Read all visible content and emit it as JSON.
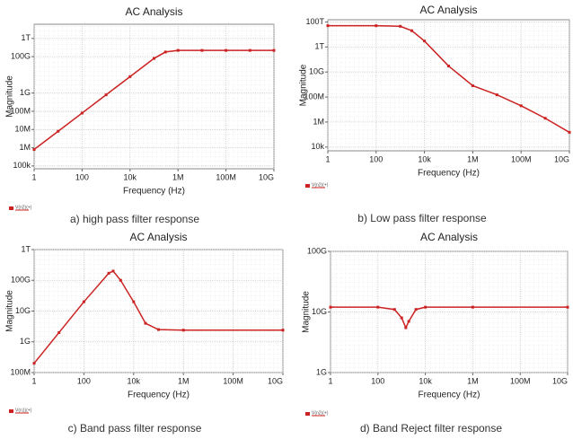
{
  "chart_data": [
    {
      "type": "line",
      "title": "AC Analysis",
      "x_label": "Frequency (Hz)",
      "y_label": "Magnitude",
      "caption": "a)    high pass filter response",
      "log_x": true,
      "log_y": true,
      "grid": true,
      "xlim": [
        1,
        10000000000
      ],
      "ylim": [
        70000,
        6000000000000
      ],
      "xticks": [
        1,
        100,
        {
          "value": 10000,
          "label": "10k"
        },
        {
          "value": 1000000,
          "label": "1M"
        },
        {
          "value": 100000000,
          "label": "100M"
        },
        {
          "value": 10000000000,
          "label": "10G"
        }
      ],
      "yticks": [
        {
          "value": 100000,
          "label": "100k"
        },
        {
          "value": 1000000,
          "label": "1M"
        },
        {
          "value": 10000000,
          "label": "10M"
        },
        {
          "value": 100000000,
          "label": "100M"
        },
        {
          "value": 1000000000,
          "label": "1G"
        },
        {
          "value": 100000000000,
          "label": "100G"
        },
        {
          "value": 1000000000000,
          "label": "1T"
        }
      ],
      "x": [
        1,
        10,
        100,
        1000,
        10000,
        100000,
        300000,
        1000000,
        10000000,
        100000000,
        1000000000,
        10000000000
      ],
      "series": [
        {
          "name": "V(n2)(+)",
          "color": "#cc2222",
          "values": [
            800000,
            8000000,
            80000000,
            800000000,
            8000000000,
            80000000000,
            180000000000,
            220000000000,
            220000000000,
            220000000000,
            220000000000,
            220000000000
          ]
        }
      ]
    },
    {
      "type": "line",
      "title": "AC Analysis",
      "x_label": "Frequency (Hz)",
      "y_label": "Magnitude",
      "caption": "b) Low pass filter response",
      "log_x": true,
      "log_y": true,
      "grid": true,
      "xlim": [
        1,
        10000000000
      ],
      "ylim": [
        5000,
        150000000000000
      ],
      "xticks": [
        1,
        100,
        {
          "value": 10000,
          "label": "10k"
        },
        {
          "value": 1000000,
          "label": "1M"
        },
        {
          "value": 100000000,
          "label": "100M"
        },
        {
          "value": 10000000000,
          "label": "10G"
        }
      ],
      "yticks": [
        {
          "value": 10000,
          "label": "10k"
        },
        {
          "value": 1000000,
          "label": "1M"
        },
        {
          "value": 100000000,
          "label": "100M"
        },
        {
          "value": 10000000000,
          "label": "10G"
        },
        {
          "value": 1000000000000,
          "label": "1T"
        },
        {
          "value": 100000000000000,
          "label": "100T"
        }
      ],
      "x": [
        1,
        100,
        1000,
        3000,
        10000,
        100000,
        1000000,
        10000000,
        100000000,
        1000000000,
        10000000000
      ],
      "series": [
        {
          "name": "V(n2)(+)",
          "color": "#cc2222",
          "values": [
            50000000000000,
            50000000000000,
            45000000000000,
            20000000000000,
            3000000000000,
            30000000000,
            800000000,
            150000000,
            20000000,
            2000000,
            150000
          ]
        }
      ]
    },
    {
      "type": "line",
      "title": "AC Analysis",
      "x_label": "Frequency (Hz)",
      "y_label": "Magnitude",
      "caption": "c) Band pass filter response",
      "log_x": true,
      "log_y": true,
      "grid": true,
      "xlim": [
        1,
        10000000000
      ],
      "ylim": [
        100000000,
        1000000000000
      ],
      "xticks": [
        1,
        100,
        {
          "value": 10000,
          "label": "10k"
        },
        {
          "value": 1000000,
          "label": "1M"
        },
        {
          "value": 100000000,
          "label": "100M"
        },
        {
          "value": 10000000000,
          "label": "10G"
        }
      ],
      "yticks": [
        {
          "value": 100000000,
          "label": "100M"
        },
        {
          "value": 1000000000,
          "label": "1G"
        },
        {
          "value": 10000000000,
          "label": "10G"
        },
        {
          "value": 100000000000,
          "label": "100G"
        },
        {
          "value": 1000000000000,
          "label": "1T"
        }
      ],
      "x": [
        1,
        10,
        100,
        1000,
        1500,
        3000,
        10000,
        30000,
        100000,
        1000000,
        10000000000
      ],
      "series": [
        {
          "name": "V(n1)(+)",
          "color": "#cc2222",
          "values": [
            200000000,
            2000000000,
            20000000000,
            170000000000,
            200000000000,
            100000000000,
            20000000000,
            4000000000,
            2500000000,
            2400000000,
            2400000000
          ]
        }
      ]
    },
    {
      "type": "line",
      "title": "AC Analysis",
      "x_label": "Frequency (Hz)",
      "y_label": "Magnitude",
      "caption": "d) Band Reject filter response",
      "log_x": true,
      "log_y": true,
      "grid": true,
      "xlim": [
        1,
        10000000000
      ],
      "ylim": [
        1000000000,
        100000000000
      ],
      "xticks": [
        1,
        100,
        {
          "value": 10000,
          "label": "10k"
        },
        {
          "value": 1000000,
          "label": "1M"
        },
        {
          "value": 100000000,
          "label": "100M"
        },
        {
          "value": 10000000000,
          "label": "10G"
        }
      ],
      "yticks": [
        {
          "value": 1000000000,
          "label": "1G"
        },
        {
          "value": 10000000000,
          "label": "10G"
        },
        {
          "value": 100000000000,
          "label": "100G"
        }
      ],
      "x": [
        1,
        100,
        500,
        1000,
        1500,
        2000,
        4000,
        10000,
        1000000,
        10000000000
      ],
      "series": [
        {
          "name": "V(n2)(+)",
          "color": "#cc2222",
          "values": [
            12000000000,
            12000000000,
            11000000000,
            8000000000,
            5500000000,
            7000000000,
            11000000000,
            12000000000,
            12000000000,
            12000000000
          ]
        }
      ]
    }
  ]
}
